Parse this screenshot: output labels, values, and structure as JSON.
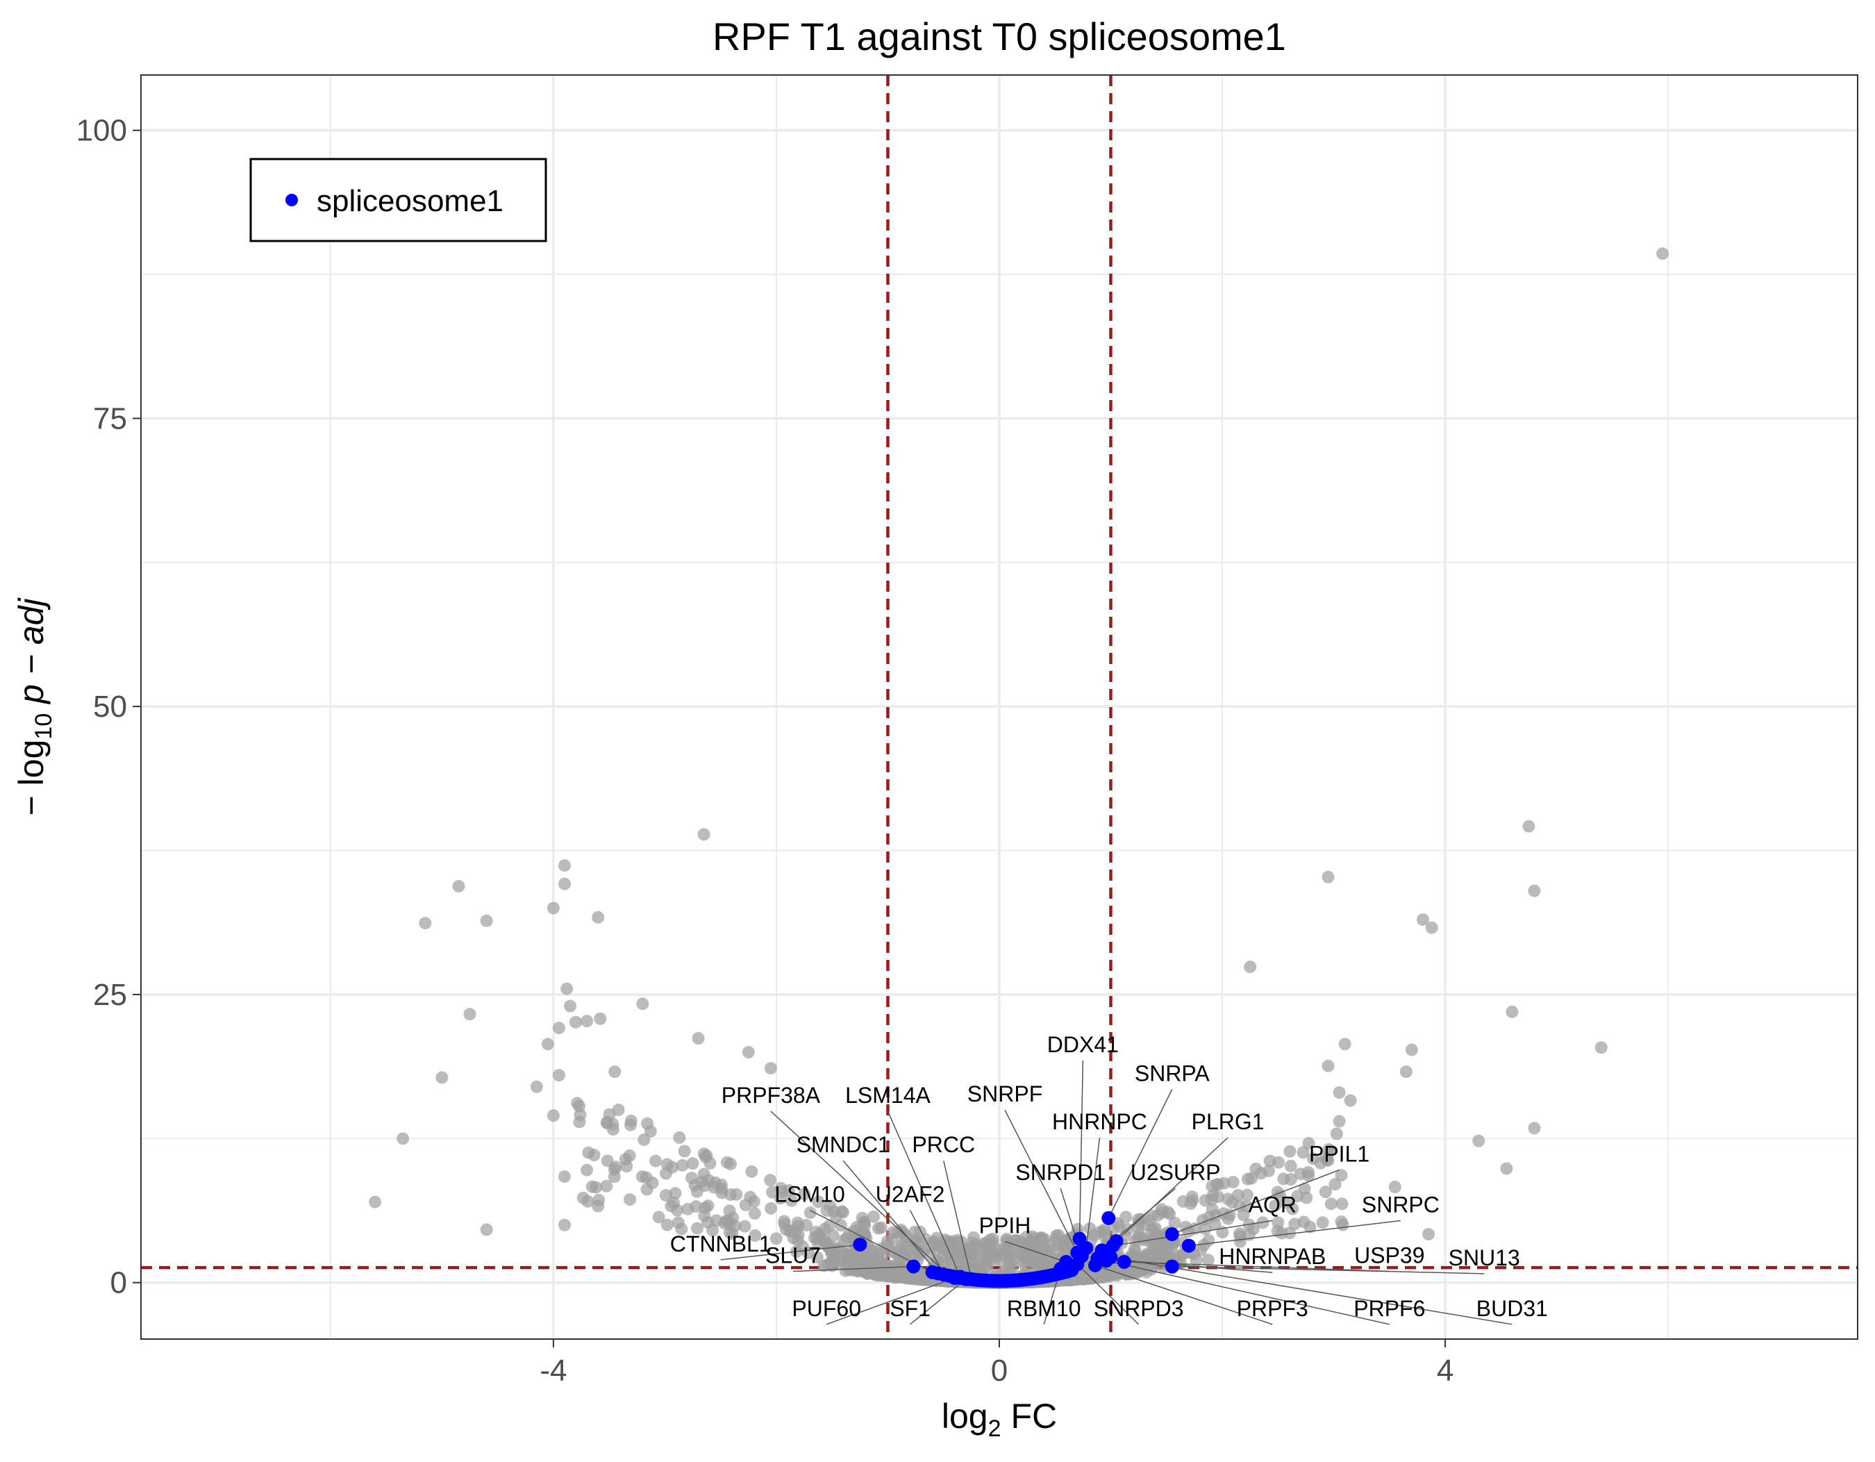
{
  "chart_data": {
    "type": "scatter",
    "title": "RPF T1 against T0 spliceosome1",
    "xlabel": "log2 FC",
    "ylabel": "−log10 p − adj",
    "xlim": [
      -7.7,
      7.7
    ],
    "ylim": [
      -4.9,
      104.8
    ],
    "x_ticks": [
      -4,
      0,
      4
    ],
    "y_ticks": [
      0,
      25,
      50,
      75,
      100
    ],
    "grid": true,
    "legend_position": "top-left",
    "thresholds": {
      "fc": [
        -1,
        1
      ],
      "p": 1.3
    },
    "colors": {
      "background_points": "#9e9e9e",
      "highlight": "#0000ff",
      "threshold_line": "#9b1b1b",
      "grid": "#ebebeb",
      "leader": "#555555"
    },
    "series": [
      {
        "name": "spliceosome1",
        "points": [
          {
            "gene": "DDX41",
            "x": 0.72,
            "y": 3.8
          },
          {
            "gene": "SNRPA",
            "x": 0.98,
            "y": 5.6
          },
          {
            "gene": "HNRNPC",
            "x": 0.78,
            "y": 3.0
          },
          {
            "gene": "PLRG1",
            "x": 1.05,
            "y": 3.6
          },
          {
            "gene": "PPIL1",
            "x": 1.55,
            "y": 4.2
          },
          {
            "gene": "SNRPF",
            "x": 0.7,
            "y": 2.6
          },
          {
            "gene": "SNRPD1",
            "x": 0.74,
            "y": 2.3
          },
          {
            "gene": "U2SURP",
            "x": 0.92,
            "y": 2.8
          },
          {
            "gene": "AQR",
            "x": 1.02,
            "y": 3.2
          },
          {
            "gene": "SNRPC",
            "x": 1.7,
            "y": 3.2
          },
          {
            "gene": "PPIH",
            "x": 0.6,
            "y": 1.8
          },
          {
            "gene": "HNRNPAB",
            "x": 0.88,
            "y": 2.1
          },
          {
            "gene": "USP39",
            "x": 1.12,
            "y": 1.8
          },
          {
            "gene": "SNU13",
            "x": 1.55,
            "y": 1.4
          },
          {
            "gene": "RBM10",
            "x": 0.55,
            "y": 1.2
          },
          {
            "gene": "SNRPD3",
            "x": 0.7,
            "y": 1.6
          },
          {
            "gene": "PRPF3",
            "x": 0.86,
            "y": 1.5
          },
          {
            "gene": "PRPF6",
            "x": 0.96,
            "y": 1.9
          },
          {
            "gene": "BUD31",
            "x": 1.0,
            "y": 2.2
          },
          {
            "gene": "PRPF38A",
            "x": -0.45,
            "y": 0.6
          },
          {
            "gene": "LSM14A",
            "x": -0.35,
            "y": 0.5
          },
          {
            "gene": "SMNDC1",
            "x": -0.55,
            "y": 0.8
          },
          {
            "gene": "PRCC",
            "x": -0.25,
            "y": 0.3
          },
          {
            "gene": "LSM10",
            "x": -0.6,
            "y": 0.9
          },
          {
            "gene": "U2AF2",
            "x": -0.5,
            "y": 0.7
          },
          {
            "gene": "CTNNBL1",
            "x": -1.25,
            "y": 3.3
          },
          {
            "gene": "SLU7",
            "x": -0.77,
            "y": 1.4
          },
          {
            "gene": "PUF60",
            "x": -0.4,
            "y": 0.4
          },
          {
            "gene": "SF1",
            "x": -0.3,
            "y": 0.3
          }
        ]
      }
    ],
    "labels": [
      {
        "gene": "DDX41",
        "lx": 0.75,
        "ly": 20.0
      },
      {
        "gene": "SNRPA",
        "lx": 1.55,
        "ly": 17.5
      },
      {
        "gene": "HNRNPC",
        "lx": 0.9,
        "ly": 13.3
      },
      {
        "gene": "PLRG1",
        "lx": 2.05,
        "ly": 13.3
      },
      {
        "gene": "PPIL1",
        "lx": 3.05,
        "ly": 10.5
      },
      {
        "gene": "SNRPF",
        "lx": 0.05,
        "ly": 15.7
      },
      {
        "gene": "SNRPD1",
        "lx": 0.55,
        "ly": 8.9
      },
      {
        "gene": "U2SURP",
        "lx": 1.58,
        "ly": 8.9
      },
      {
        "gene": "AQR",
        "lx": 2.45,
        "ly": 6.1
      },
      {
        "gene": "SNRPC",
        "lx": 3.6,
        "ly": 6.1
      },
      {
        "gene": "PPIH",
        "lx": 0.05,
        "ly": 4.3
      },
      {
        "gene": "HNRNPAB",
        "lx": 2.45,
        "ly": 1.6
      },
      {
        "gene": "USP39",
        "lx": 3.5,
        "ly": 1.7
      },
      {
        "gene": "SNU13",
        "lx": 4.35,
        "ly": 1.5
      },
      {
        "gene": "RBM10",
        "lx": 0.4,
        "ly": -2.9
      },
      {
        "gene": "SNRPD3",
        "lx": 1.25,
        "ly": -2.9
      },
      {
        "gene": "PRPF3",
        "lx": 2.45,
        "ly": -2.9
      },
      {
        "gene": "PRPF6",
        "lx": 3.5,
        "ly": -2.9
      },
      {
        "gene": "BUD31",
        "lx": 4.6,
        "ly": -2.9
      },
      {
        "gene": "PRPF38A",
        "lx": -2.05,
        "ly": 15.6
      },
      {
        "gene": "LSM14A",
        "lx": -1.0,
        "ly": 15.6
      },
      {
        "gene": "SMNDC1",
        "lx": -1.4,
        "ly": 11.3
      },
      {
        "gene": "PRCC",
        "lx": -0.5,
        "ly": 11.3
      },
      {
        "gene": "LSM10",
        "lx": -1.7,
        "ly": 7.0
      },
      {
        "gene": "U2AF2",
        "lx": -0.8,
        "ly": 7.0
      },
      {
        "gene": "CTNNBL1",
        "lx": -2.5,
        "ly": 2.7
      },
      {
        "gene": "SLU7",
        "lx": -1.85,
        "ly": 1.7
      },
      {
        "gene": "PUF60",
        "lx": -1.55,
        "ly": -2.9
      },
      {
        "gene": "SF1",
        "lx": -0.8,
        "ly": -2.9
      }
    ],
    "background_outliers": [
      [
        -5.6,
        7.0
      ],
      [
        -5.35,
        12.5
      ],
      [
        -5.15,
        31.2
      ],
      [
        -5.0,
        17.8
      ],
      [
        -4.85,
        34.4
      ],
      [
        -4.75,
        23.3
      ],
      [
        -4.6,
        31.4
      ],
      [
        -4.15,
        17.0
      ],
      [
        -4.0,
        32.5
      ],
      [
        -3.95,
        22.1
      ],
      [
        -3.9,
        36.2
      ],
      [
        -3.9,
        34.6
      ],
      [
        -3.88,
        25.5
      ],
      [
        -3.85,
        24.0
      ],
      [
        -3.8,
        22.6
      ],
      [
        -3.7,
        22.7
      ],
      [
        -3.6,
        31.7
      ],
      [
        -3.58,
        22.9
      ],
      [
        -3.45,
        18.3
      ],
      [
        -4.05,
        20.7
      ],
      [
        -4.0,
        14.5
      ],
      [
        -3.95,
        18.0
      ],
      [
        -3.9,
        9.2
      ],
      [
        -3.2,
        24.2
      ],
      [
        -2.65,
        38.9
      ],
      [
        -2.7,
        21.2
      ],
      [
        -2.25,
        20.0
      ],
      [
        -2.05,
        18.6
      ],
      [
        -3.9,
        5.0
      ],
      [
        -4.6,
        4.6
      ],
      [
        2.25,
        27.4
      ],
      [
        2.95,
        35.2
      ],
      [
        3.1,
        20.7
      ],
      [
        3.7,
        20.2
      ],
      [
        3.65,
        18.3
      ],
      [
        3.8,
        31.5
      ],
      [
        3.88,
        30.8
      ],
      [
        4.6,
        23.5
      ],
      [
        4.75,
        39.6
      ],
      [
        4.8,
        34.0
      ],
      [
        5.4,
        20.4
      ],
      [
        5.95,
        89.3
      ],
      [
        4.3,
        12.3
      ],
      [
        4.55,
        9.9
      ],
      [
        4.8,
        13.4
      ],
      [
        3.05,
        16.5
      ],
      [
        2.95,
        18.8
      ],
      [
        3.85,
        4.2
      ],
      [
        3.55,
        8.3
      ],
      [
        3.15,
        15.8
      ],
      [
        3.05,
        14.0
      ],
      [
        2.55,
        9.0
      ]
    ]
  }
}
